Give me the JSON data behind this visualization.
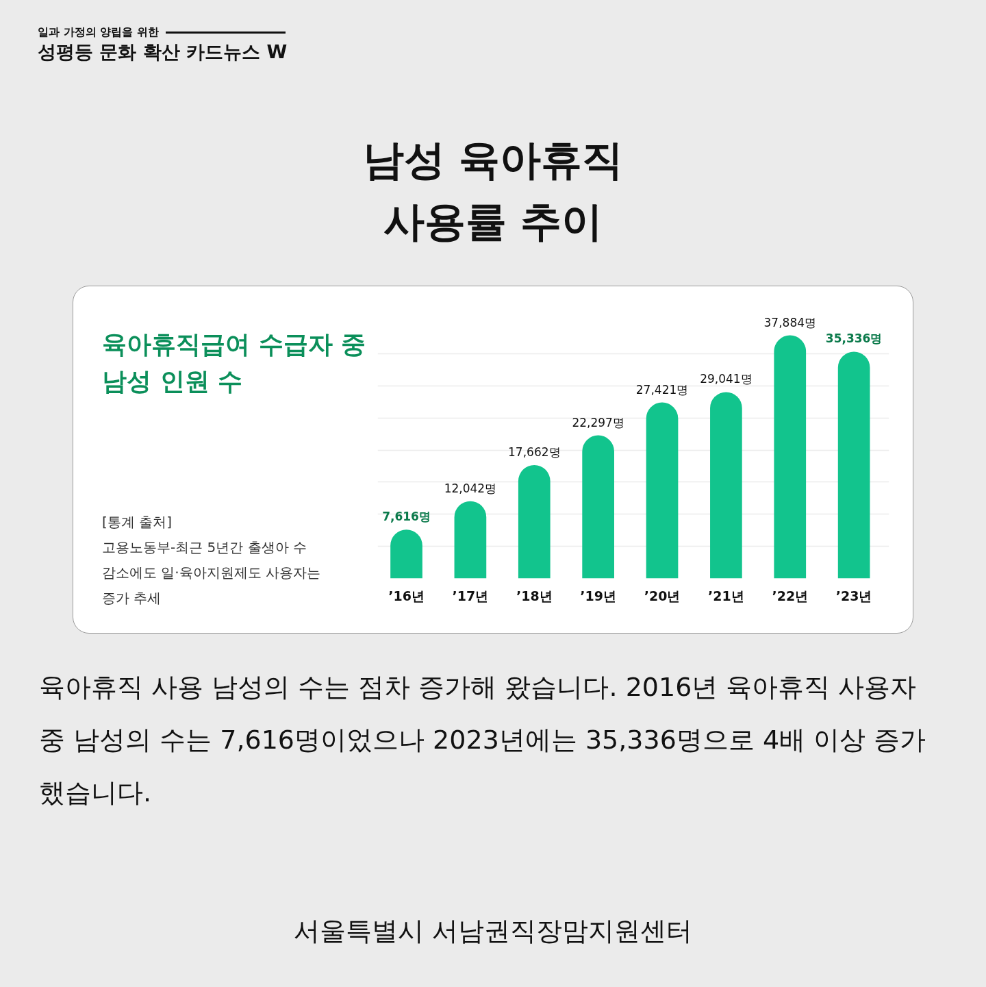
{
  "chart_data": {
    "type": "bar",
    "title": "남성 육아휴직\n사용률 추이",
    "subtitle": "육아휴직급여 수급자 중\n남성 인원 수",
    "categories": [
      "’16년",
      "’17년",
      "’18년",
      "’19년",
      "’20년",
      "’21년",
      "’22년",
      "’23년"
    ],
    "values": [
      7616,
      12042,
      17662,
      22297,
      27421,
      29041,
      37884,
      35336
    ],
    "value_labels": [
      "7,616명",
      "12,042명",
      "17,662명",
      "22,297명",
      "27,421명",
      "29,041명",
      "37,884명",
      "35,336명"
    ],
    "color": "#12c48d",
    "grid": "y",
    "tick_labels": "x",
    "annotations": [
      "일과 가정의 양립을 위한",
      "성평등 문화 확산 카드뉴스 W",
      "[통계 출처]\n고용노동부-최근 5년간 출생아 수 감소에도 일·육아지원제도 사용자는 증가 추세",
      "육아휴직 사용 남성의 수는 점차 증가해 왔습니다. 2016년 육아휴직 사용자 중 남성의 수는 7,616명이었으나 2023년에는 35,336명으로 4배 이상 증가했습니다.",
      "서울특별시 서남권직장맘지원센터"
    ]
  }
}
